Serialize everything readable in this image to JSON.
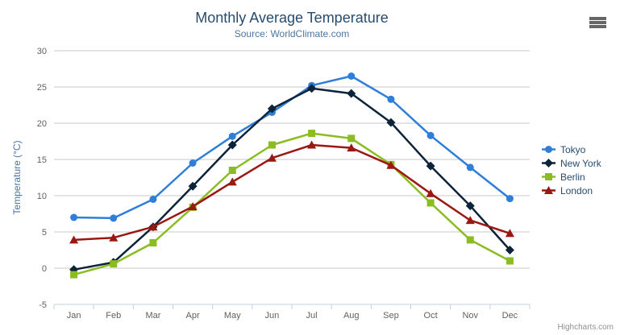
{
  "chart": {
    "title": "Monthly Average Temperature",
    "subtitle": "Source: WorldClimate.com",
    "credits_label": "Highcharts.com",
    "colors": {
      "title": "#274b6d",
      "subtitle": "#4d759e",
      "axis_title": "#4d759e",
      "axis_labels": "#606060",
      "axis_line": "#c0d0e0",
      "grid_line": "#c9c9c9",
      "legend_text": "#274b6d",
      "credits": "#909090",
      "menu_icon": "#666666"
    }
  },
  "chart_data": {
    "type": "line",
    "title": "Monthly Average Temperature",
    "subtitle": "Source: WorldClimate.com",
    "xlabel": "",
    "ylabel": "Temperature (°C)",
    "ylim": [
      -5,
      30
    ],
    "ytick_step": 5,
    "grid": true,
    "legend_position": "right",
    "categories": [
      "Jan",
      "Feb",
      "Mar",
      "Apr",
      "May",
      "Jun",
      "Jul",
      "Aug",
      "Sep",
      "Oct",
      "Nov",
      "Dec"
    ],
    "series": [
      {
        "name": "Tokyo",
        "color": "#2f7ed8",
        "marker": "circle",
        "values": [
          7.0,
          6.9,
          9.5,
          14.5,
          18.2,
          21.5,
          25.2,
          26.5,
          23.3,
          18.3,
          13.9,
          9.6
        ]
      },
      {
        "name": "New York",
        "color": "#0d233a",
        "marker": "diamond",
        "values": [
          -0.2,
          0.8,
          5.7,
          11.3,
          17.0,
          22.0,
          24.8,
          24.1,
          20.1,
          14.1,
          8.6,
          2.5
        ]
      },
      {
        "name": "Berlin",
        "color": "#8bbc21",
        "marker": "square",
        "values": [
          -0.9,
          0.6,
          3.5,
          8.4,
          13.5,
          17.0,
          18.6,
          17.9,
          14.3,
          9.0,
          3.9,
          1.0
        ]
      },
      {
        "name": "London",
        "color": "#9a1712",
        "marker": "triangle",
        "values": [
          3.9,
          4.2,
          5.7,
          8.5,
          11.9,
          15.2,
          17.0,
          16.6,
          14.2,
          10.3,
          6.6,
          4.8
        ]
      }
    ]
  }
}
